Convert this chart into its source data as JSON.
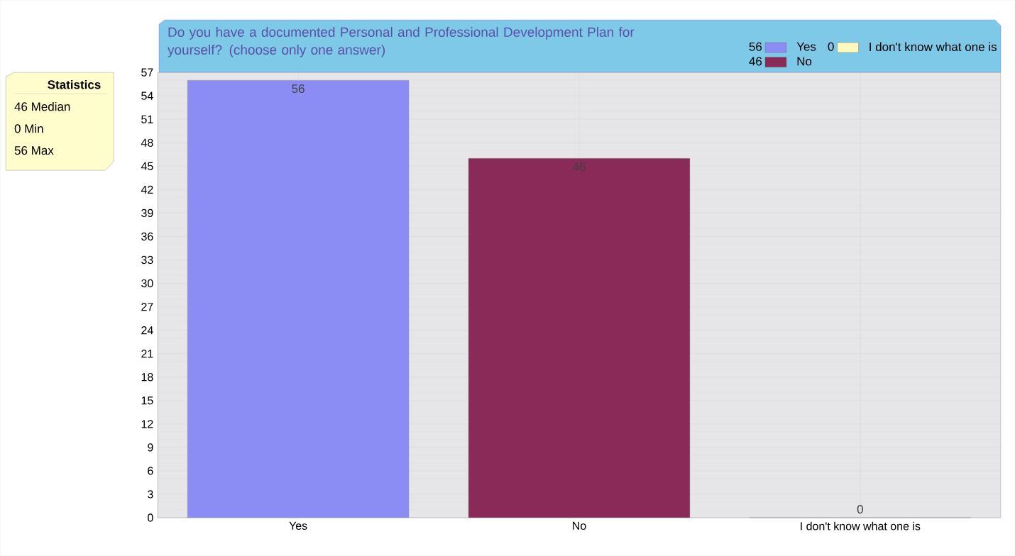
{
  "chart_data": {
    "type": "bar",
    "title": "Do you have a documented Personal and Professional Development Plan for yourself? (choose only one answer)",
    "categories": [
      "Yes",
      "No",
      "I don't know what one is"
    ],
    "series": [
      {
        "name": "Yes",
        "color": "#8c8cf5",
        "values": [
          56,
          null,
          null
        ]
      },
      {
        "name": "No",
        "color": "#8a2a58",
        "values": [
          null,
          46,
          null
        ]
      },
      {
        "name": "I don't know what one is",
        "color": "#fff8c0",
        "values": [
          null,
          null,
          0
        ]
      }
    ],
    "ylim": [
      0,
      57
    ],
    "yticks": [
      0,
      3,
      6,
      9,
      12,
      15,
      18,
      21,
      24,
      27,
      30,
      33,
      36,
      39,
      42,
      45,
      48,
      51,
      54,
      57
    ],
    "grid": true,
    "legend": "top right",
    "data_labels": true,
    "annotations": [
      "Statistics",
      "46 Median",
      "0 Min",
      "56 Max",
      "56",
      "46",
      "0"
    ]
  }
}
